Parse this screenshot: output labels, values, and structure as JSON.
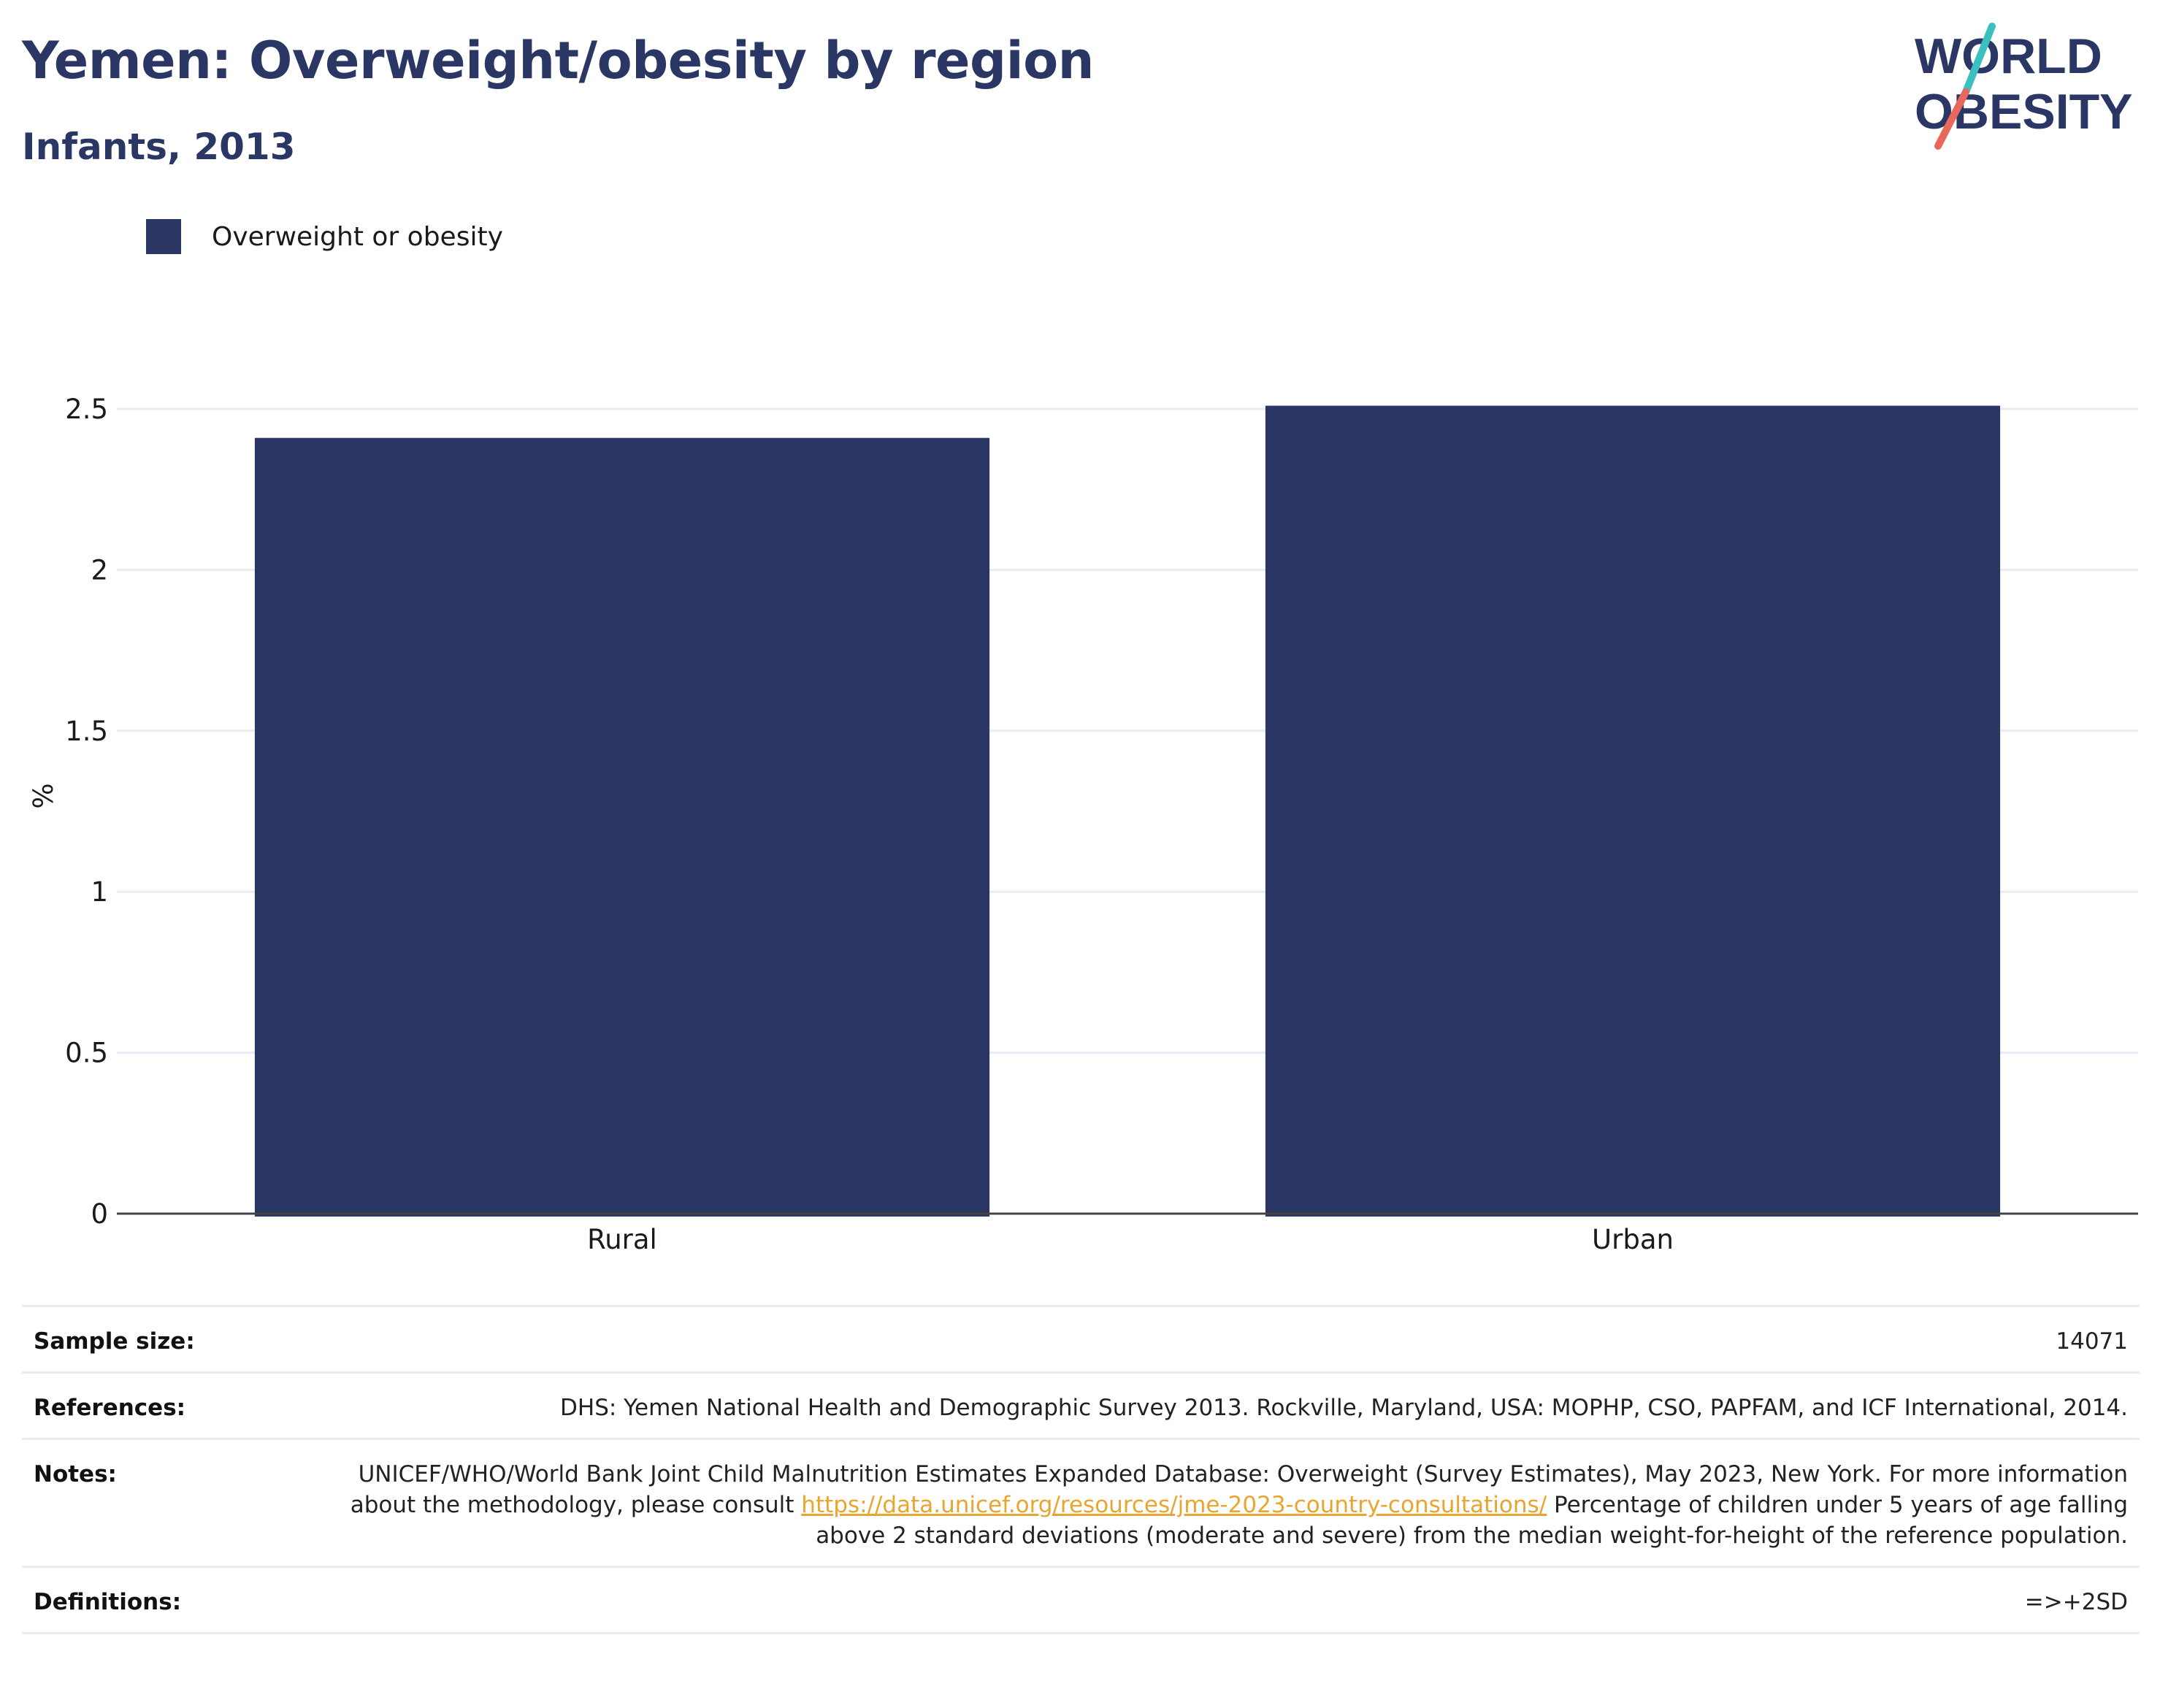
{
  "title": "Yemen: Overweight/obesity by region",
  "subtitle": "Infants, 2013",
  "logo": {
    "line1": "WORLD",
    "line2": "OBESITY",
    "text_color": "#2a3764",
    "slash_top_color": "#3bbfbf",
    "slash_bottom_color": "#e8685c"
  },
  "legend": {
    "items": [
      {
        "label": "Overweight or obesity",
        "color": "#2a3764"
      }
    ],
    "placement": "top-left"
  },
  "chart_data": {
    "type": "bar",
    "categories": [
      "Rural",
      "Urban"
    ],
    "series": [
      {
        "name": "Overweight or obesity",
        "values": [
          2.41,
          2.51
        ],
        "color": "#2a3764"
      }
    ],
    "ylabel": "%",
    "xlabel": "",
    "ylim": [
      0,
      2.5
    ],
    "yticks": [
      0,
      0.5,
      1,
      1.5,
      2,
      2.5
    ],
    "ytick_labels": [
      "0",
      "0.5",
      "1",
      "1.5",
      "2",
      "2.5"
    ],
    "grid": true,
    "gridline_color": "#e8ecf4",
    "axis_color": "#444444"
  },
  "info": {
    "sample_size": {
      "label": "Sample size:",
      "value": "14071"
    },
    "references": {
      "label": "References:",
      "value": "DHS: Yemen National Health and Demographic Survey 2013. Rockville, Maryland, USA: MOPHP, CSO, PAPFAM, and ICF International, 2014."
    },
    "notes": {
      "label": "Notes:",
      "text_before_link": "UNICEF/WHO/World Bank Joint Child Malnutrition Estimates Expanded Database: Overweight (Survey Estimates), May 2023, New York. For more information about the methodology, please consult ",
      "link": "https://data.unicef.org/resources/jme-2023-country-consultations/",
      "text_after_link": " Percentage of children under 5 years of age falling above 2 standard deviations (moderate and severe) from the median weight-for-height of the reference population."
    },
    "definitions": {
      "label": "Definitions:",
      "value": "=>+2SD"
    }
  }
}
